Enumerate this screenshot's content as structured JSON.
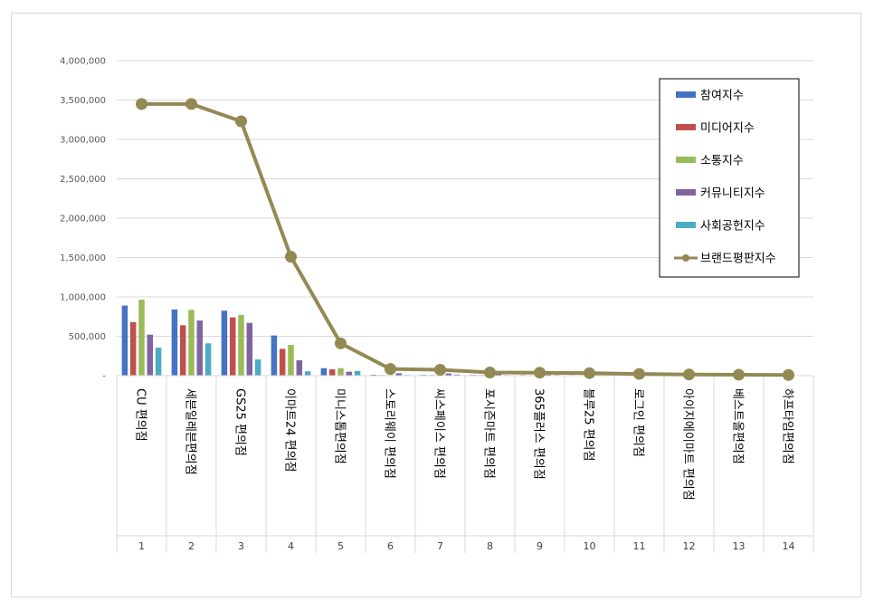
{
  "chart_data": {
    "type": "bar",
    "title": "",
    "xlabel": "",
    "ylabel": "",
    "ylim": [
      0,
      4000000
    ],
    "yticks": [
      0,
      500000,
      1000000,
      1500000,
      2000000,
      2500000,
      3000000,
      3500000,
      4000000
    ],
    "ytick_labels": [
      "-",
      "500,000",
      "1,000,000",
      "1,500,000",
      "2,000,000",
      "2,500,000",
      "3,000,000",
      "3,500,000",
      "4,000,000"
    ],
    "grid": true,
    "legend_position": "top-right",
    "categories": [
      "CU 편의점",
      "세븐일레븐편의점",
      "GS25 편의점",
      "이마트24 편의점",
      "미니스톱편의점",
      "스토리웨이 편의점",
      "씨스페이스 편의점",
      "포시즌마트 편의점",
      "365플러스 편의점",
      "블루25 편의점",
      "로그인 편의점",
      "아이지에이마트 편의점",
      "베스트올편의점",
      "하프타임편의점"
    ],
    "category_numbers": [
      "1",
      "2",
      "3",
      "4",
      "5",
      "6",
      "7",
      "8",
      "9",
      "10",
      "11",
      "12",
      "13",
      "14"
    ],
    "series": [
      {
        "name": "참여지수",
        "type": "bar",
        "color": "#4472c4",
        "values": [
          890000,
          840000,
          825000,
          510000,
          95000,
          12000,
          10000,
          9000,
          8000,
          7000,
          5000,
          4000,
          3000,
          2000
        ]
      },
      {
        "name": "미디어지수",
        "type": "bar",
        "color": "#c0504d",
        "values": [
          680000,
          640000,
          740000,
          340000,
          80000,
          8000,
          8000,
          8000,
          6000,
          5000,
          4000,
          3000,
          2000,
          2000
        ]
      },
      {
        "name": "소통지수",
        "type": "bar",
        "color": "#9bbb59",
        "values": [
          965000,
          835000,
          770000,
          390000,
          95000,
          8000,
          8000,
          8000,
          6000,
          5000,
          4000,
          3000,
          2000,
          2000
        ]
      },
      {
        "name": "커뮤니티지수",
        "type": "bar",
        "color": "#8064a2",
        "values": [
          520000,
          700000,
          670000,
          195000,
          50000,
          30000,
          28000,
          20000,
          15000,
          12000,
          9000,
          5000,
          3000,
          2000
        ]
      },
      {
        "name": "사회공헌지수",
        "type": "bar",
        "color": "#4bacc6",
        "values": [
          355000,
          410000,
          205000,
          55000,
          60000,
          8000,
          15000,
          8000,
          10000,
          8000,
          6000,
          5000,
          4000,
          2000
        ]
      },
      {
        "name": "브랜드평판지수",
        "type": "line",
        "color": "#938953",
        "values": [
          3450000,
          3450000,
          3230000,
          1510000,
          410000,
          85000,
          75000,
          40000,
          38000,
          32000,
          22000,
          15000,
          12000,
          8000
        ]
      }
    ]
  }
}
